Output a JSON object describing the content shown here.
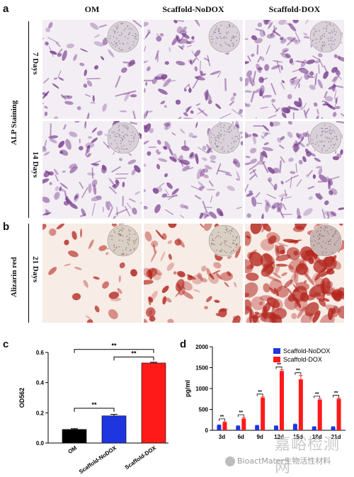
{
  "panels": {
    "a_label": "a",
    "b_label": "b",
    "c_label": "c",
    "d_label": "d"
  },
  "column_headers": [
    "OM",
    "Scaffold-NoDOX",
    "Scaffold-DOX"
  ],
  "row_labels": {
    "alp_group": "ALP Staining",
    "day7": "7 Days",
    "day14": "14 Days",
    "alizarin_group": "Alizarin red",
    "day21": "21 Days"
  },
  "colors": {
    "alp_stain": "#7a3f8f",
    "alp_bg": "#f3eef4",
    "ar_stain": "#b3261e",
    "ar_bg": "#f7ece6",
    "bar_om": "#000000",
    "bar_nodox": "#1f35e0",
    "bar_dox": "#ff1a1a"
  },
  "chart_data": [
    {
      "type": "bar",
      "categories": [
        "OM",
        "Scaffold-NoDOX",
        "Scaffold-DOX"
      ],
      "values": [
        0.09,
        0.18,
        0.53
      ],
      "errors": [
        0.005,
        0.01,
        0.005
      ],
      "ylabel": "OD562",
      "ylim": [
        0.0,
        0.6
      ],
      "yticks": [
        "0.0",
        "0.2",
        "0.4",
        "0.6"
      ],
      "significance": [
        {
          "from": "OM",
          "to": "Scaffold-NoDOX",
          "label": "**"
        },
        {
          "from": "OM",
          "to": "Scaffold-DOX",
          "label": "**"
        },
        {
          "from": "Scaffold-NoDOX",
          "to": "Scaffold-DOX",
          "label": "**"
        }
      ]
    },
    {
      "type": "bar",
      "categories": [
        "3d",
        "6d",
        "9d",
        "12d",
        "15d",
        "18d",
        "21d"
      ],
      "series": [
        {
          "name": "Scaffold-NoDOX",
          "values": [
            120,
            100,
            110,
            100,
            140,
            80,
            80
          ],
          "errors": [
            10,
            8,
            8,
            8,
            10,
            6,
            6
          ]
        },
        {
          "name": "Scaffold-DOX",
          "values": [
            190,
            280,
            780,
            1420,
            1220,
            730,
            750
          ],
          "errors": [
            15,
            25,
            20,
            30,
            90,
            20,
            20
          ]
        }
      ],
      "ylabel": "pg/ml",
      "ylim": [
        0,
        2000
      ],
      "yticks": [
        "0",
        "500",
        "1000",
        "1500",
        "2000"
      ],
      "significance_label": "**",
      "legend": "top-right"
    }
  ],
  "watermark": {
    "line1": "嘉峪检测网",
    "line2": "BioactMater生物活性材料"
  }
}
